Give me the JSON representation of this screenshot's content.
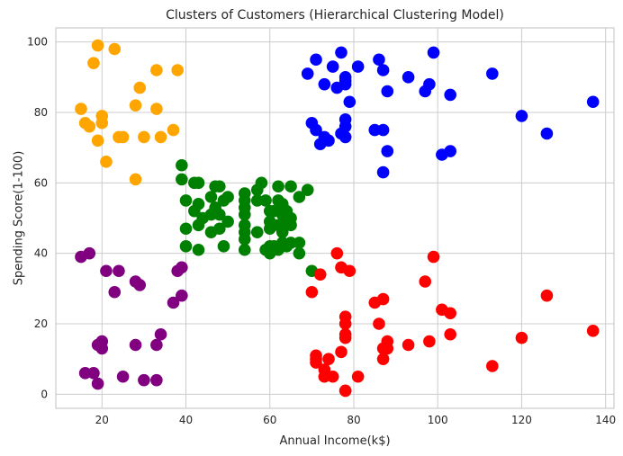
{
  "chart_data": {
    "type": "scatter",
    "title": "Clusters of Customers (Hierarchical Clustering Model)",
    "xlabel": "Annual Income(k$)",
    "ylabel": "Spending Score(1-100)",
    "xlim": [
      9,
      142
    ],
    "ylim": [
      -4,
      104
    ],
    "xticks": [
      20,
      40,
      60,
      80,
      100,
      120,
      140
    ],
    "yticks": [
      0,
      20,
      40,
      60,
      80,
      100
    ],
    "grid": true,
    "series": [
      {
        "color": "#ffa500",
        "points": [
          [
            15,
            81
          ],
          [
            16,
            77
          ],
          [
            17,
            76
          ],
          [
            18,
            94
          ],
          [
            19,
            99
          ],
          [
            19,
            72
          ],
          [
            20,
            77
          ],
          [
            20,
            79
          ],
          [
            21,
            66
          ],
          [
            23,
            98
          ],
          [
            24,
            73
          ],
          [
            25,
            73
          ],
          [
            28,
            82
          ],
          [
            28,
            61
          ],
          [
            29,
            87
          ],
          [
            30,
            73
          ],
          [
            33,
            92
          ],
          [
            33,
            81
          ],
          [
            34,
            73
          ],
          [
            37,
            75
          ],
          [
            38,
            92
          ]
        ]
      },
      {
        "color": "#0000ff",
        "points": [
          [
            69,
            91
          ],
          [
            70,
            77
          ],
          [
            71,
            95
          ],
          [
            71,
            75
          ],
          [
            72,
            71
          ],
          [
            73,
            88
          ],
          [
            73,
            73
          ],
          [
            74,
            72
          ],
          [
            75,
            93
          ],
          [
            76,
            87
          ],
          [
            77,
            97
          ],
          [
            77,
            74
          ],
          [
            78,
            90
          ],
          [
            78,
            89
          ],
          [
            78,
            88
          ],
          [
            78,
            78
          ],
          [
            78,
            76
          ],
          [
            78,
            73
          ],
          [
            79,
            83
          ],
          [
            81,
            93
          ],
          [
            85,
            75
          ],
          [
            86,
            95
          ],
          [
            87,
            92
          ],
          [
            87,
            75
          ],
          [
            87,
            63
          ],
          [
            88,
            86
          ],
          [
            88,
            69
          ],
          [
            93,
            90
          ],
          [
            97,
            86
          ],
          [
            98,
            88
          ],
          [
            99,
            97
          ],
          [
            101,
            68
          ],
          [
            103,
            85
          ],
          [
            103,
            69
          ],
          [
            113,
            91
          ],
          [
            120,
            79
          ],
          [
            126,
            74
          ],
          [
            137,
            83
          ]
        ]
      },
      {
        "color": "#008000",
        "points": [
          [
            39,
            65
          ],
          [
            39,
            61
          ],
          [
            40,
            55
          ],
          [
            40,
            47
          ],
          [
            40,
            42
          ],
          [
            42,
            60
          ],
          [
            42,
            52
          ],
          [
            43,
            60
          ],
          [
            43,
            54
          ],
          [
            43,
            48
          ],
          [
            43,
            41
          ],
          [
            44,
            50
          ],
          [
            46,
            51
          ],
          [
            46,
            56
          ],
          [
            46,
            46
          ],
          [
            47,
            59
          ],
          [
            47,
            53
          ],
          [
            48,
            59
          ],
          [
            48,
            51
          ],
          [
            48,
            47
          ],
          [
            49,
            55
          ],
          [
            49,
            42
          ],
          [
            50,
            56
          ],
          [
            50,
            49
          ],
          [
            54,
            57
          ],
          [
            54,
            55
          ],
          [
            54,
            53
          ],
          [
            54,
            51
          ],
          [
            54,
            48
          ],
          [
            54,
            46
          ],
          [
            54,
            44
          ],
          [
            54,
            41
          ],
          [
            57,
            58
          ],
          [
            57,
            55
          ],
          [
            57,
            46
          ],
          [
            58,
            60
          ],
          [
            59,
            55
          ],
          [
            59,
            41
          ],
          [
            60,
            52
          ],
          [
            60,
            49
          ],
          [
            60,
            47
          ],
          [
            60,
            42
          ],
          [
            60,
            40
          ],
          [
            61,
            52
          ],
          [
            61,
            42
          ],
          [
            62,
            59
          ],
          [
            62,
            55
          ],
          [
            62,
            48
          ],
          [
            62,
            41
          ],
          [
            63,
            54
          ],
          [
            63,
            51
          ],
          [
            63,
            46
          ],
          [
            63,
            43
          ],
          [
            64,
            52
          ],
          [
            64,
            49
          ],
          [
            64,
            42
          ],
          [
            65,
            59
          ],
          [
            65,
            50
          ],
          [
            65,
            48
          ],
          [
            65,
            43
          ],
          [
            67,
            56
          ],
          [
            67,
            40
          ],
          [
            67,
            43
          ],
          [
            69,
            58
          ],
          [
            70,
            35
          ]
        ]
      },
      {
        "color": "#800080",
        "points": [
          [
            15,
            39
          ],
          [
            16,
            6
          ],
          [
            17,
            40
          ],
          [
            18,
            6
          ],
          [
            19,
            3
          ],
          [
            19,
            14
          ],
          [
            20,
            15
          ],
          [
            20,
            13
          ],
          [
            21,
            35
          ],
          [
            23,
            29
          ],
          [
            24,
            35
          ],
          [
            25,
            5
          ],
          [
            28,
            32
          ],
          [
            28,
            14
          ],
          [
            29,
            31
          ],
          [
            30,
            4
          ],
          [
            33,
            4
          ],
          [
            33,
            14
          ],
          [
            34,
            17
          ],
          [
            37,
            26
          ],
          [
            38,
            35
          ],
          [
            39,
            36
          ],
          [
            39,
            28
          ]
        ]
      },
      {
        "color": "#ff0000",
        "points": [
          [
            71,
            11
          ],
          [
            71,
            9
          ],
          [
            72,
            34
          ],
          [
            73,
            5
          ],
          [
            73,
            7
          ],
          [
            74,
            10
          ],
          [
            75,
            5
          ],
          [
            76,
            40
          ],
          [
            77,
            36
          ],
          [
            77,
            12
          ],
          [
            78,
            22
          ],
          [
            78,
            20
          ],
          [
            78,
            17
          ],
          [
            78,
            16
          ],
          [
            78,
            1
          ],
          [
            78,
            1
          ],
          [
            79,
            35
          ],
          [
            81,
            5
          ],
          [
            85,
            26
          ],
          [
            86,
            20
          ],
          [
            87,
            27
          ],
          [
            87,
            13
          ],
          [
            87,
            10
          ],
          [
            88,
            13
          ],
          [
            88,
            15
          ],
          [
            93,
            14
          ],
          [
            97,
            32
          ],
          [
            98,
            15
          ],
          [
            99,
            39
          ],
          [
            101,
            24
          ],
          [
            103,
            23
          ],
          [
            103,
            17
          ],
          [
            113,
            8
          ],
          [
            120,
            16
          ],
          [
            126,
            28
          ],
          [
            137,
            18
          ],
          [
            70,
            29
          ],
          [
            71,
            10
          ]
        ]
      }
    ]
  }
}
